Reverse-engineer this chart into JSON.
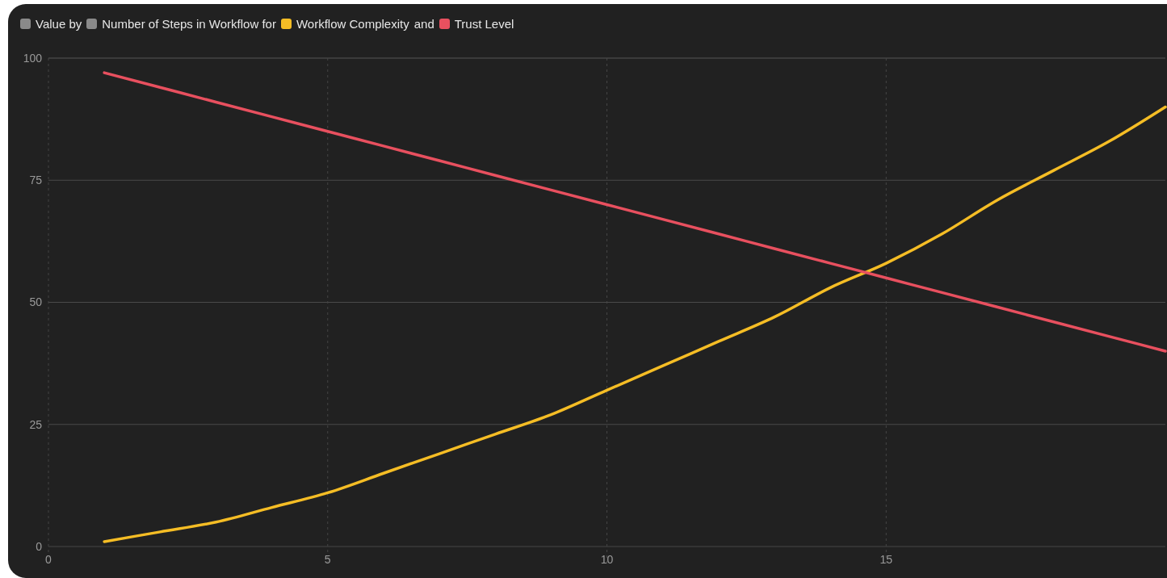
{
  "chart_data": {
    "type": "line",
    "ylabel": "Value",
    "xlabel": "Number of Steps in Workflow",
    "annotations": [
      "by",
      "for",
      "and"
    ],
    "x": [
      1,
      2,
      3,
      4,
      5,
      6,
      7,
      8,
      9,
      10,
      11,
      12,
      13,
      14,
      15,
      16,
      17,
      18,
      19,
      20
    ],
    "series": [
      {
        "name": "Workflow Complexity",
        "color": "#f5bd25",
        "values": [
          1,
          3,
          5,
          8,
          11,
          15,
          19,
          23,
          27,
          32,
          37,
          42,
          47,
          53,
          58,
          64,
          71,
          77,
          83,
          90
        ]
      },
      {
        "name": "Trust Level",
        "color": "#e8505f",
        "values": [
          97,
          94,
          91,
          88,
          85,
          82,
          79,
          76,
          73,
          70,
          67,
          64,
          61,
          58,
          55,
          52,
          49,
          46,
          43,
          40
        ]
      }
    ],
    "xlim": [
      0,
      20
    ],
    "xticks": [
      0,
      5,
      10,
      15
    ],
    "ylim": [
      0,
      100
    ],
    "yticks": [
      0,
      25,
      50,
      75,
      100
    ],
    "grid": true,
    "legend": "top left",
    "marker": "none",
    "line_style": "solid"
  }
}
